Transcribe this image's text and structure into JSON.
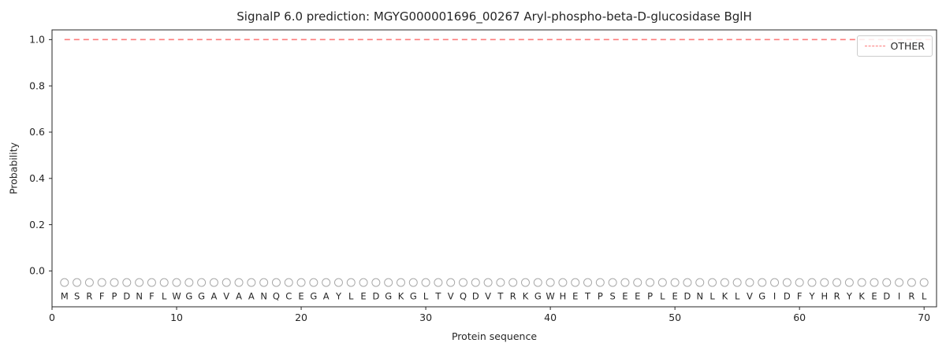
{
  "chart_data": {
    "type": "line",
    "title": "SignalP 6.0 prediction: MGYG000001696_00267 Aryl-phospho-beta-D-glucosidase BglH",
    "xlabel": "Protein sequence",
    "ylabel": "Probability",
    "xlim": [
      0,
      71
    ],
    "ylim": [
      -0.155,
      1.042
    ],
    "grid": false,
    "x_ticks": [
      0,
      10,
      20,
      30,
      40,
      50,
      60,
      70
    ],
    "y_ticks": [
      {
        "label": "0.0",
        "value": 0.0
      },
      {
        "label": "0.2",
        "value": 0.2
      },
      {
        "label": "0.4",
        "value": 0.4
      },
      {
        "label": "0.6",
        "value": 0.6
      },
      {
        "label": "0.8",
        "value": 0.8
      },
      {
        "label": "1.0",
        "value": 1.0
      }
    ],
    "legend": {
      "position": "top-right",
      "entries": [
        {
          "label": "OTHER",
          "color": "#fc7c7c",
          "style": "dashed"
        }
      ]
    },
    "series": [
      {
        "name": "OTHER",
        "color": "#fc7c7c",
        "style": "dashed",
        "y_value": 1.0,
        "x_start": 1,
        "x_end": 70
      }
    ],
    "sequence": [
      "M",
      "S",
      "R",
      "F",
      "P",
      "D",
      "N",
      "F",
      "L",
      "W",
      "G",
      "G",
      "A",
      "V",
      "A",
      "A",
      "N",
      "Q",
      "C",
      "E",
      "G",
      "A",
      "Y",
      "L",
      "E",
      "D",
      "G",
      "K",
      "G",
      "L",
      "T",
      "V",
      "Q",
      "D",
      "V",
      "T",
      "R",
      "K",
      "G",
      "W",
      "H",
      "E",
      "T",
      "P",
      "S",
      "E",
      "E",
      "P",
      "L",
      "E",
      "D",
      "N",
      "L",
      "K",
      "L",
      "V",
      "G",
      "I",
      "D",
      "F",
      "Y",
      "H",
      "R",
      "Y",
      "K",
      "E",
      "D",
      "I",
      "R",
      "L"
    ],
    "sequence_marker": {
      "shape": "circle",
      "y": -0.05,
      "color": "#a8a8a8"
    },
    "sequence_label_y": -0.108,
    "colors": {
      "frame": "#262626",
      "text": "#262626",
      "letters": "#262626",
      "background": "#ffffff"
    }
  }
}
